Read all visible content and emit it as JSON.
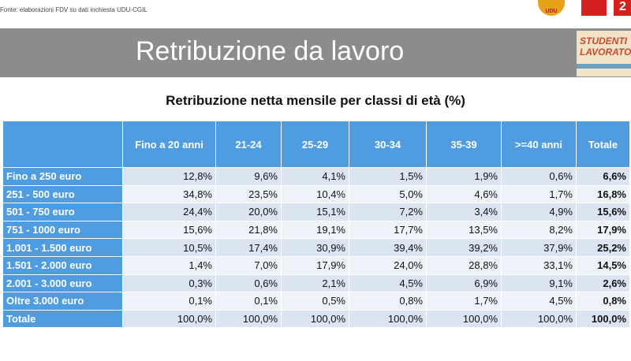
{
  "source_note": "Fonte: elaborazioni FDV su dati inchiesta UDU-CGIL",
  "logo_udu_text": "UDU",
  "logo_right_text": "2",
  "title": "Retribuzione da lavoro",
  "badge": {
    "line1": "STUDENTI",
    "line2": "LAVORATORI"
  },
  "subtitle": "Retribuzione netta mensile per classi di età (%)",
  "table": {
    "headers": [
      "",
      "Fino a 20 anni",
      "21-24",
      "25-29",
      "30-34",
      "35-39",
      ">=40 anni",
      "Totale"
    ],
    "rows": [
      {
        "label": "Fino a 250 euro",
        "values": [
          "12,8%",
          "9,6%",
          "4,1%",
          "1,5%",
          "1,9%",
          "0,6%",
          "6,6%"
        ]
      },
      {
        "label": "251 - 500 euro",
        "values": [
          "34,8%",
          "23,5%",
          "10,4%",
          "5,0%",
          "4,6%",
          "1,7%",
          "16,8%"
        ]
      },
      {
        "label": "501 - 750 euro",
        "values": [
          "24,4%",
          "20,0%",
          "15,1%",
          "7,2%",
          "3,4%",
          "4,9%",
          "15,6%"
        ]
      },
      {
        "label": "751 - 1000 euro",
        "values": [
          "15,6%",
          "21,8%",
          "19,1%",
          "17,7%",
          "13,5%",
          "8,2%",
          "17,9%"
        ]
      },
      {
        "label": "1.001 - 1.500 euro",
        "values": [
          "10,5%",
          "17,4%",
          "30,9%",
          "39,4%",
          "39,2%",
          "37,9%",
          "25,2%"
        ]
      },
      {
        "label": "1.501 - 2.000 euro",
        "values": [
          "1,4%",
          "7,0%",
          "17,9%",
          "24,0%",
          "28,8%",
          "33,1%",
          "14,5%"
        ]
      },
      {
        "label": "2.001 - 3.000 euro",
        "values": [
          "0,3%",
          "0,6%",
          "2,1%",
          "4,5%",
          "6,9%",
          "9,1%",
          "2,6%"
        ]
      },
      {
        "label": "Oltre 3.000 euro",
        "values": [
          "0,1%",
          "0,1%",
          "0,5%",
          "0,8%",
          "1,7%",
          "4,5%",
          "0,8%"
        ]
      },
      {
        "label": "Totale",
        "values": [
          "100,0%",
          "100,0%",
          "100,0%",
          "100,0%",
          "100,0%",
          "100,0%",
          "100,0%"
        ]
      }
    ]
  }
}
